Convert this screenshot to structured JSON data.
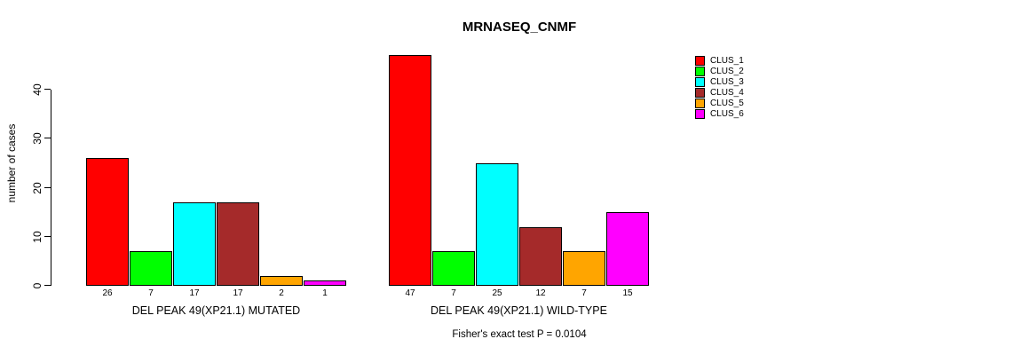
{
  "chart_data": {
    "type": "bar",
    "title": "MRNASEQ_CNMF",
    "ylabel": "number of cases",
    "xlabel": "",
    "ylim": [
      0,
      40
    ],
    "yticks": [
      0,
      10,
      20,
      30,
      40
    ],
    "grid": false,
    "legend_position": "right",
    "group_labels": [
      "DEL PEAK 49(XP21.1) MUTATED",
      "DEL PEAK 49(XP21.1) WILD-TYPE"
    ],
    "series": [
      {
        "name": "CLUS_1",
        "color": "#FF0000",
        "values": [
          26,
          47
        ]
      },
      {
        "name": "CLUS_2",
        "color": "#00FF00",
        "values": [
          7,
          7
        ]
      },
      {
        "name": "CLUS_3",
        "color": "#00FFFF",
        "values": [
          17,
          25
        ]
      },
      {
        "name": "CLUS_4",
        "color": "#A52A2A",
        "values": [
          17,
          12
        ]
      },
      {
        "name": "CLUS_5",
        "color": "#FFA500",
        "values": [
          2,
          7
        ]
      },
      {
        "name": "CLUS_6",
        "color": "#FF00FF",
        "values": [
          1,
          15
        ]
      }
    ],
    "footnote": "Fisher's exact test P = 0.0104"
  }
}
